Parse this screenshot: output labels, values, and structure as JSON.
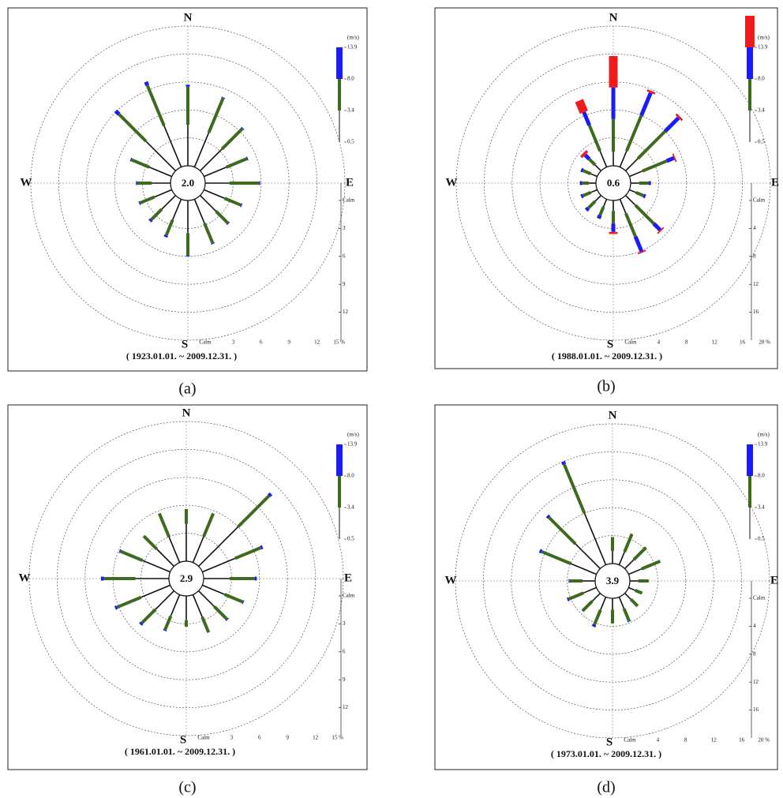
{
  "chart_data": [
    {
      "type": "windrose",
      "panel_label": "(a)",
      "period": "( 1923.01.01. ~ 2009.12.31. )",
      "calm": "2.0",
      "categories": [
        "N",
        null,
        null,
        null,
        "E",
        null,
        null,
        null,
        "S",
        null,
        null,
        null,
        "W",
        null,
        null,
        null
      ],
      "rlim": [
        0,
        15
      ],
      "rticks": [
        {
          "value": 0,
          "label": "Calm"
        },
        3,
        6,
        9,
        12,
        {
          "value": 15,
          "label": "15 %"
        }
      ],
      "legend_unit": "(m/s)",
      "legend_ticks": [
        0.5,
        3.4,
        {
          "value": 8,
          "label": "8.0"
        },
        13.9
      ],
      "series": [
        {
          "color": "#111111",
          "values": [
            4.4,
            4.0,
            3.3,
            2.6,
            2.6,
            2.4,
            2.4,
            2.8,
            3.5,
            2.4,
            2.1,
            2.0,
            2.0,
            2.6,
            4.5,
            4.8
          ]
        },
        {
          "color": "#3d6b1e",
          "values": [
            4.1,
            4.0,
            3.1,
            2.4,
            3.2,
            1.9,
            1.8,
            2.3,
            2.4,
            1.8,
            1.6,
            1.7,
            1.6,
            2.1,
            4.1,
            4.7
          ]
        },
        {
          "color": "#1a1aff",
          "values": [
            0.2,
            0.1,
            0.1,
            0.1,
            0.1,
            0.1,
            0.1,
            0.1,
            0.1,
            0.2,
            0.2,
            0.1,
            0.1,
            0.1,
            0.5,
            0.4
          ]
        }
      ]
    },
    {
      "type": "windrose",
      "panel_label": "(b)",
      "period": "( 1988.01.01. ~ 2009.12.31. )",
      "calm": "0.6",
      "categories": [
        "N",
        null,
        null,
        null,
        "E",
        null,
        null,
        null,
        "S",
        null,
        null,
        null,
        "W",
        null,
        null,
        null
      ],
      "rlim": [
        0,
        20
      ],
      "rticks": [
        {
          "value": 0,
          "label": "Calm"
        },
        4,
        8,
        12,
        16,
        {
          "value": 20,
          "label": "20 %"
        }
      ],
      "legend_unit": "(m/s)",
      "legend_ticks": [
        0.5,
        3.4,
        {
          "value": 8,
          "label": "8.0"
        },
        13.9
      ],
      "series": [
        {
          "color": "#111111",
          "values": [
            2.0,
            2.5,
            2.5,
            2.0,
            1.2,
            1.0,
            2.0,
            2.2,
            1.5,
            1.2,
            1.2,
            1.0,
            1.0,
            1.0,
            1.2,
            2.5
          ]
        },
        {
          "color": "#3d6b1e",
          "values": [
            4.7,
            5.5,
            5.5,
            3.8,
            1.4,
            1.2,
            3.7,
            3.6,
            1.8,
            1.3,
            1.4,
            1.2,
            1.0,
            1.2,
            1.2,
            4.0
          ]
        },
        {
          "color": "#1a1aff",
          "values": [
            4.5,
            3.5,
            2.7,
            1.1,
            0.3,
            0.3,
            1.3,
            2.3,
            1.2,
            0.5,
            0.4,
            0.3,
            0.3,
            0.3,
            0.8,
            2.0
          ]
        },
        {
          "color": "#ee1c1c",
          "values": [
            4.5,
            0.3,
            0.3,
            0.2,
            0,
            0,
            0.2,
            0.2,
            0.3,
            0,
            0,
            0,
            0,
            0,
            0.4,
            1.8
          ]
        }
      ]
    },
    {
      "type": "windrose",
      "panel_label": "(c)",
      "period": "( 1961.01.01. ~ 2009.12.31. )",
      "calm": "2.9",
      "categories": [
        "N",
        null,
        null,
        null,
        "E",
        null,
        null,
        null,
        "S",
        null,
        null,
        null,
        "W",
        null,
        null,
        null
      ],
      "rlim": [
        0,
        15
      ],
      "rticks": [
        {
          "value": 0,
          "label": "Calm"
        },
        3,
        6,
        9,
        12,
        {
          "value": 15,
          "label": "15 %"
        }
      ],
      "legend_unit": "(m/s)",
      "legend_ticks": [
        0.5,
        3.4,
        {
          "value": 8,
          "label": "8.0"
        },
        13.9
      ],
      "series": [
        {
          "color": "#111111",
          "values": [
            4.0,
            3.0,
            6.0,
            3.8,
            2.8,
            2.6,
            2.4,
            2.6,
            2.6,
            2.5,
            2.8,
            3.4,
            3.6,
            3.2,
            2.6,
            3.0
          ]
        },
        {
          "color": "#3d6b1e",
          "values": [
            1.6,
            2.7,
            4.7,
            3.0,
            2.7,
            2.1,
            1.9,
            1.8,
            0.7,
            1.6,
            2.1,
            2.8,
            3.4,
            2.6,
            2.0,
            2.7
          ]
        },
        {
          "color": "#1a1aff",
          "values": [
            0,
            0,
            0.3,
            0.2,
            0.2,
            0.1,
            0.1,
            0,
            0,
            0.1,
            0.2,
            0.2,
            0.3,
            0.1,
            0,
            0
          ]
        }
      ]
    },
    {
      "type": "windrose",
      "panel_label": "(d)",
      "period": "( 1973.01.01. ~ 2009.12.31. )",
      "calm": "3.9",
      "categories": [
        "N",
        null,
        null,
        null,
        "E",
        null,
        null,
        null,
        "S",
        null,
        null,
        null,
        "W",
        null,
        null,
        null
      ],
      "rlim": [
        0,
        20
      ],
      "rticks": [
        {
          "value": 0,
          "label": "Calm"
        },
        4,
        8,
        12,
        16,
        {
          "value": 20,
          "label": "20 %"
        }
      ],
      "legend_unit": "(m/s)",
      "legend_ticks": [
        0.5,
        3.4,
        {
          "value": 8,
          "label": "8.0"
        },
        13.9
      ],
      "series": [
        {
          "color": "#111111",
          "values": [
            1.8,
            2.0,
            1.8,
            2.0,
            1.2,
            1.0,
            1.2,
            1.8,
            1.6,
            2.0,
            1.6,
            2.0,
            1.8,
            4.0,
            5.0,
            8.0
          ]
        },
        {
          "color": "#3d6b1e",
          "values": [
            2.0,
            2.8,
            2.5,
            2.9,
            1.5,
            1.1,
            1.4,
            1.9,
            2.0,
            2.3,
            2.0,
            2.3,
            1.9,
            4.5,
            5.4,
            7.6
          ]
        },
        {
          "color": "#1a1aff",
          "values": [
            0,
            0,
            0,
            0,
            0,
            0,
            0,
            0.1,
            0,
            0.3,
            0,
            0.2,
            0.1,
            0.3,
            0.3,
            0.4
          ]
        }
      ]
    }
  ]
}
